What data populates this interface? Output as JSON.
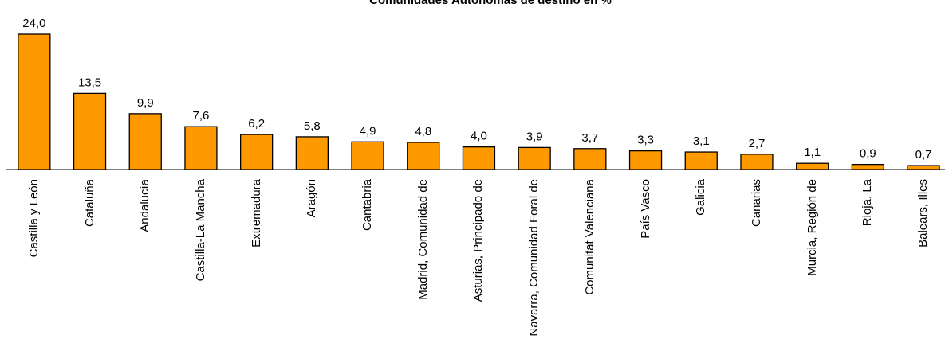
{
  "chart_data": {
    "type": "bar",
    "title": "Comunidades Autónomas de destino en %",
    "categories": [
      "Castilla y León",
      "Cataluña",
      "Andalucía",
      "Castilla-La Mancha",
      "Extremadura",
      "Aragón",
      "Cantabria",
      "Madrid, Comunidad de",
      "Asturias, Principado de",
      "Navarra, Comunidad Foral de",
      "Comunitat Valenciana",
      "País Vasco",
      "Galicia",
      "Canarias",
      "Murcia, Región de",
      "Rioja, La",
      "Balears, Illes"
    ],
    "values": [
      24.0,
      13.5,
      9.9,
      7.6,
      6.2,
      5.8,
      4.9,
      4.8,
      4.0,
      3.9,
      3.7,
      3.3,
      3.1,
      2.7,
      1.1,
      0.9,
      0.7
    ],
    "value_labels": [
      "24,0",
      "13,5",
      "9,9",
      "7,6",
      "6,2",
      "5,8",
      "4,9",
      "4,8",
      "4,0",
      "3,9",
      "3,7",
      "3,3",
      "3,1",
      "2,7",
      "1,1",
      "0,9",
      "0,7"
    ],
    "color": "#ff9900"
  }
}
